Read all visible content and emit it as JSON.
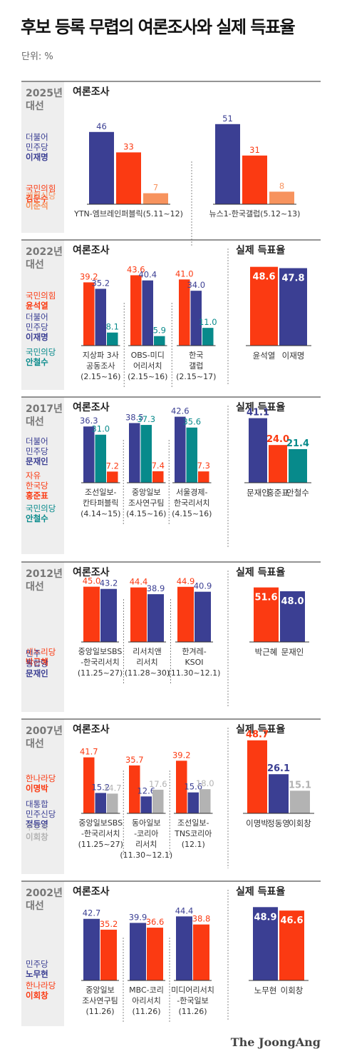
{
  "title": "후보 등록 무렵의 여론조사와 실제 득표율",
  "unit": "단위: %",
  "brand": "The JoongAng",
  "colors": {
    "blue": "#3b3f93",
    "red": "#fb3a12",
    "orange": "#f7935e",
    "teal": "#078a8b",
    "gray": "#b3b3b3",
    "panel": "#eeeeee",
    "line": "#555555",
    "sep": "#888888"
  },
  "chart_data": [
    {
      "type": "bar",
      "year": "2025년",
      "label2": "대선",
      "survey_title": "여론조사",
      "actual_title": null,
      "legend": [
        {
          "lines": [
            "더불어",
            "민주당"
          ],
          "bold": "이재명",
          "color": "blue"
        },
        {
          "lines": [
            "국민의힘"
          ],
          "bold": "김문수",
          "color": "red"
        },
        {
          "lines": [
            "개혁신당"
          ],
          "bold": "이준석",
          "color": "orange"
        }
      ],
      "polls": [
        {
          "label": [
            "YTN-엠브레인퍼블릭(5.11~12)"
          ],
          "values": [
            46,
            33,
            7
          ]
        },
        {
          "label": [
            "뉴스1-한국갤럽(5.12~13)"
          ],
          "values": [
            51,
            31,
            8
          ]
        }
      ],
      "series_colors": [
        "blue",
        "red",
        "orange"
      ],
      "actual": null
    },
    {
      "type": "bar",
      "year": "2022년",
      "label2": "대선",
      "survey_title": "여론조사",
      "actual_title": "실제 득표율",
      "legend": [
        {
          "lines": [
            "국민의힘"
          ],
          "bold": "윤석열",
          "color": "red"
        },
        {
          "lines": [
            "더불어",
            "민주당"
          ],
          "bold": "이재명",
          "color": "blue"
        },
        {
          "lines": [
            "국민의당"
          ],
          "bold": "안철수",
          "color": "teal"
        }
      ],
      "polls": [
        {
          "label": [
            "지상파 3사",
            "공동조사",
            "(2.15~16)"
          ],
          "values": [
            "39.2",
            "35.2",
            "8.1"
          ]
        },
        {
          "label": [
            "OBS-미디",
            "어리서치",
            "(2.15~16)"
          ],
          "values": [
            "43.6",
            "40.4",
            "5.9"
          ]
        },
        {
          "label": [
            "한국",
            "갤럽",
            "(2.15~17)"
          ],
          "values": [
            "41.0",
            "34.0",
            "11.0"
          ]
        }
      ],
      "series_colors": [
        "red",
        "blue",
        "teal"
      ],
      "actual": {
        "names": [
          "윤석열",
          "이재명"
        ],
        "values": [
          "48.6",
          "47.8"
        ],
        "colors": [
          "red",
          "blue"
        ]
      }
    },
    {
      "type": "bar",
      "year": "2017년",
      "label2": "대선",
      "survey_title": "여론조사",
      "actual_title": "실제 득표율",
      "legend": [
        {
          "lines": [
            "더불어",
            "민주당"
          ],
          "bold": "문재인",
          "color": "blue"
        },
        {
          "lines": [
            "자유",
            "한국당"
          ],
          "bold": "홍준표",
          "color": "red"
        },
        {
          "lines": [
            "국민의당"
          ],
          "bold": "안철수",
          "color": "teal"
        }
      ],
      "polls": [
        {
          "label": [
            "조선일보-",
            "칸타퍼블릭",
            "(4.14~15)"
          ],
          "values": [
            "36.3",
            "31.0",
            "7.2"
          ]
        },
        {
          "label": [
            "중앙일보",
            "조사연구팀",
            "(4.15~16)"
          ],
          "values": [
            "38.5",
            "37.3",
            "7.4"
          ]
        },
        {
          "label": [
            "서울경제-",
            "한국리서치",
            "(4.15~16)"
          ],
          "values": [
            "42.6",
            "35.6",
            "7.3"
          ]
        }
      ],
      "series_colors": [
        "blue",
        "teal",
        "red"
      ],
      "actual": {
        "names": [
          "문재인",
          "홍준표",
          "안철수"
        ],
        "values": [
          "41.1",
          "24.0",
          "21.4"
        ],
        "colors": [
          "blue",
          "red",
          "teal"
        ]
      }
    },
    {
      "type": "bar",
      "year": "2012년",
      "label2": "대선",
      "survey_title": "여론조사",
      "actual_title": "실제 득표율",
      "legend": [
        {
          "lines": [
            "새누리당"
          ],
          "bold": "박근혜",
          "color": "red"
        },
        {
          "lines": [
            "민주",
            "통합당"
          ],
          "bold": "문재인",
          "color": "blue"
        }
      ],
      "polls": [
        {
          "label": [
            "중앙일보SBS",
            "-한국리서치",
            "(11.25~27)"
          ],
          "values": [
            "45.0",
            "43.2"
          ]
        },
        {
          "label": [
            "리서치앤",
            "리서치",
            "(11.28~30)"
          ],
          "values": [
            "44.4",
            "38.9"
          ]
        },
        {
          "label": [
            "한겨레-",
            "KSOI",
            "(11.30~12.1)"
          ],
          "values": [
            "44.9",
            "40.9"
          ]
        }
      ],
      "series_colors": [
        "red",
        "blue"
      ],
      "actual": {
        "names": [
          "박근혜",
          "문재인"
        ],
        "values": [
          "51.6",
          "48.0"
        ],
        "colors": [
          "red",
          "blue"
        ]
      }
    },
    {
      "type": "bar",
      "year": "2007년",
      "label2": "대선",
      "survey_title": "여론조사",
      "actual_title": "실제 득표율",
      "legend": [
        {
          "lines": [
            "한나라당"
          ],
          "bold": "이명박",
          "color": "red"
        },
        {
          "lines": [
            "대통합",
            "민주신당"
          ],
          "bold": "정동영",
          "color": "blue"
        },
        {
          "lines": [
            "무소속"
          ],
          "bold": "이회창",
          "color": "gray"
        }
      ],
      "polls": [
        {
          "label": [
            "중앙일보SBS",
            "-한국리서치",
            "(11.25~27)"
          ],
          "values": [
            "41.7",
            "15.2",
            "14.7"
          ]
        },
        {
          "label": [
            "동아일보",
            "-코리아",
            "리서치",
            "(11.30~12.1)"
          ],
          "values": [
            "35.7",
            "12.6",
            "17.6"
          ]
        },
        {
          "label": [
            "조선일보-",
            "TNS코리아",
            "(12.1)"
          ],
          "values": [
            "39.2",
            "15.6",
            "18.0"
          ]
        }
      ],
      "series_colors": [
        "red",
        "blue",
        "gray"
      ],
      "actual": {
        "names": [
          "이명박",
          "정동영",
          "이회창"
        ],
        "values": [
          "48.7",
          "26.1",
          "15.1"
        ],
        "colors": [
          "red",
          "blue",
          "gray"
        ]
      }
    },
    {
      "type": "bar",
      "year": "2002년",
      "label2": "대선",
      "survey_title": "여론조사",
      "actual_title": "실제 득표율",
      "legend": [
        {
          "lines": [
            "민주당"
          ],
          "bold": "노무현",
          "color": "blue"
        },
        {
          "lines": [
            "한나라당"
          ],
          "bold": "이회창",
          "color": "red"
        }
      ],
      "polls": [
        {
          "label": [
            "중앙일보",
            "조사연구팀",
            "(11.26)"
          ],
          "values": [
            "42.7",
            "35.2"
          ]
        },
        {
          "label": [
            "MBC-코리",
            "아리서치",
            "(11.26)"
          ],
          "values": [
            "39.9",
            "36.6"
          ]
        },
        {
          "label": [
            "미디어리서치",
            "-한국일보",
            "(11.26)"
          ],
          "values": [
            "44.4",
            "38.8"
          ]
        }
      ],
      "series_colors": [
        "blue",
        "red"
      ],
      "actual": {
        "names": [
          "노무현",
          "이회창"
        ],
        "values": [
          "48.9",
          "46.6"
        ],
        "colors": [
          "blue",
          "red"
        ]
      }
    }
  ]
}
